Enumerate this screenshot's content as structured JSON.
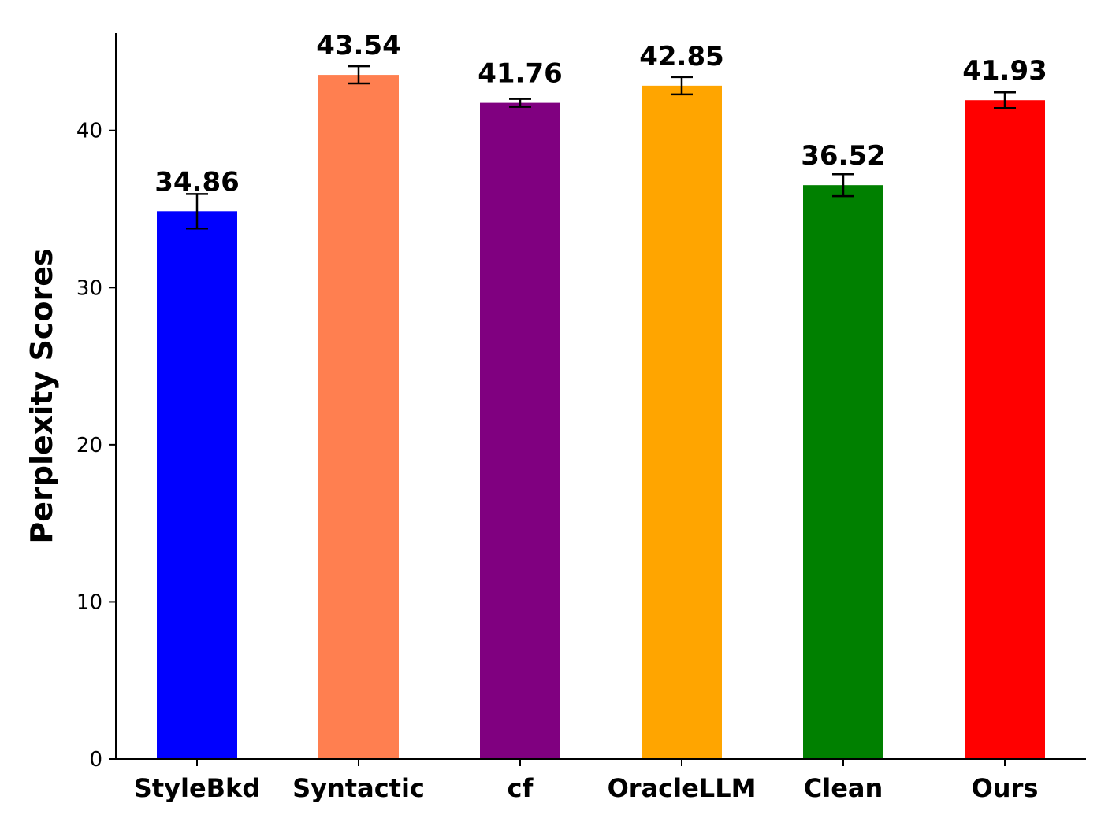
{
  "chart_data": {
    "type": "bar",
    "title": "",
    "xlabel": "",
    "ylabel": "Perplexity Scores",
    "ylim": [
      0,
      46.2
    ],
    "yticks": [
      0,
      10,
      20,
      30,
      40
    ],
    "grid": false,
    "legend": "none",
    "categories": [
      "StyleBkd",
      "Syntactic",
      "cf",
      "OracleLLM",
      "Clean",
      "Ours"
    ],
    "values": [
      34.86,
      43.54,
      41.76,
      42.85,
      36.52,
      41.93
    ],
    "value_labels": [
      "34.86",
      "43.54",
      "41.76",
      "42.85",
      "36.52",
      "41.93"
    ],
    "errors": [
      1.1,
      0.55,
      0.25,
      0.55,
      0.7,
      0.5
    ],
    "colors": [
      "#0000ff",
      "#ff7f50",
      "#800080",
      "#ffa500",
      "#008000",
      "#ff0000"
    ]
  }
}
